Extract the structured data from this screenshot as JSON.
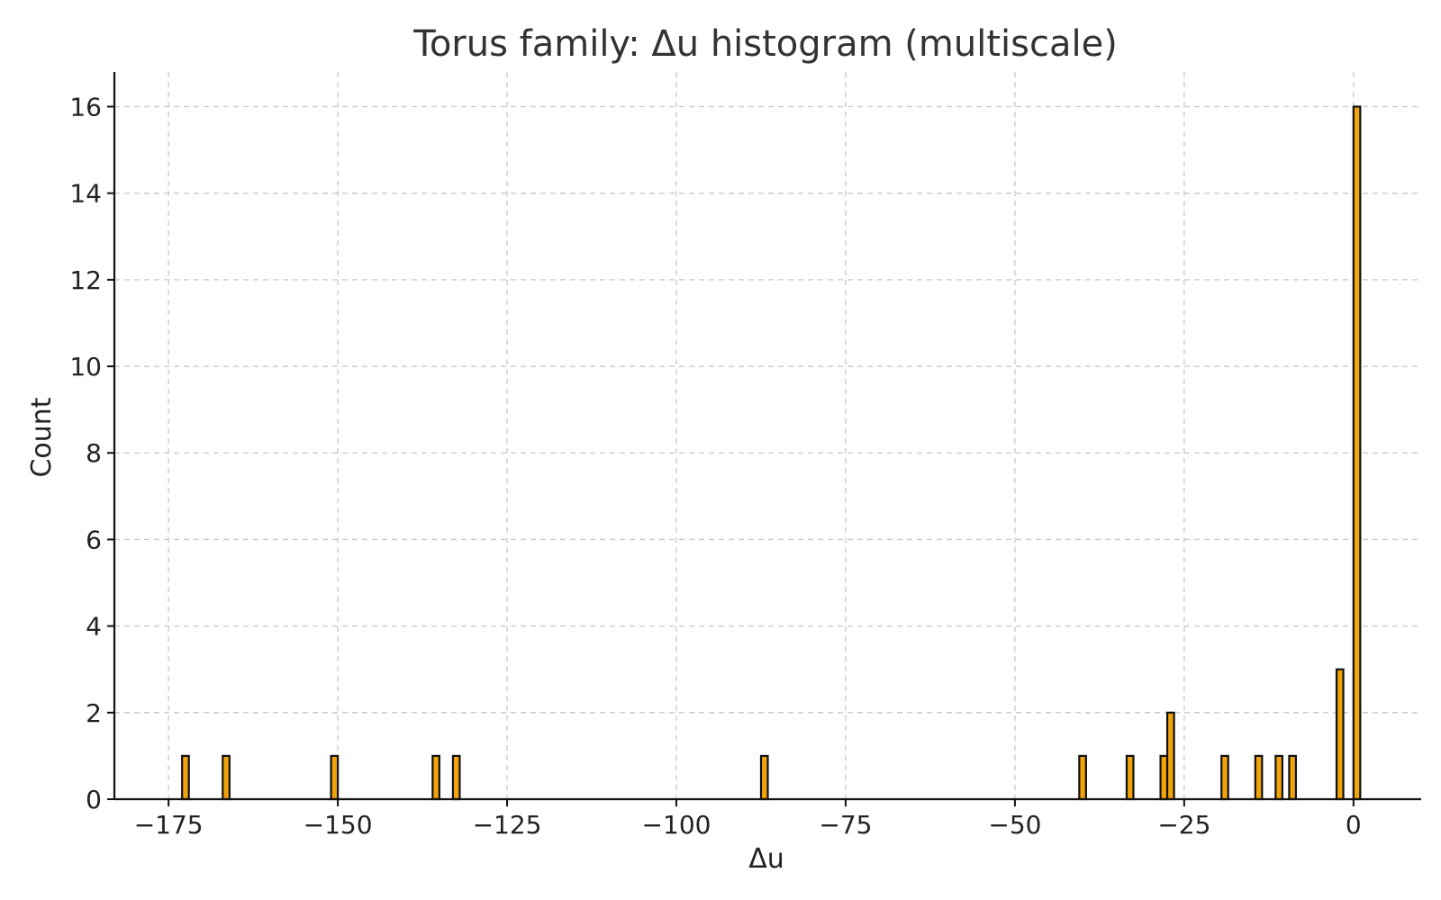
{
  "chart_data": {
    "type": "bar",
    "title": "Torus family: Δu histogram (multiscale)",
    "xlabel": "Δu",
    "ylabel": "Count",
    "xlim": [
      -183,
      10
    ],
    "ylim": [
      0,
      16.8
    ],
    "xticks": [
      -175,
      -150,
      -125,
      -100,
      -75,
      -50,
      -25,
      0
    ],
    "xtick_labels": [
      "−175",
      "−150",
      "−125",
      "−100",
      "−75",
      "−50",
      "−25",
      "0"
    ],
    "yticks": [
      0,
      2,
      4,
      6,
      8,
      10,
      12,
      14,
      16
    ],
    "ytick_labels": [
      "0",
      "2",
      "4",
      "6",
      "8",
      "10",
      "12",
      "14",
      "16"
    ],
    "grid": true,
    "bar_color": "#f0a30a",
    "bar_edge_color": "#111111",
    "bin_width": 1.0,
    "x": [
      -172.5,
      -166.5,
      -150.5,
      -135.5,
      -132.5,
      -87,
      -40,
      -33,
      -28,
      -27,
      -19,
      -14,
      -11,
      -9,
      -2,
      0.5
    ],
    "values": [
      1,
      1,
      1,
      1,
      1,
      1,
      1,
      1,
      1,
      2,
      1,
      1,
      1,
      1,
      3,
      16
    ]
  }
}
